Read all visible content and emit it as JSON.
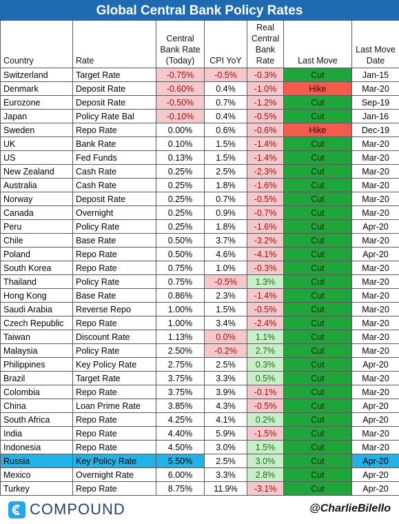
{
  "title": "Global Central Bank Policy Rates",
  "headers": {
    "country": "Country",
    "rate": "Rate",
    "policy_rate": [
      "Central",
      "Bank Rate",
      "(Today)"
    ],
    "cpi": "CPI YoY",
    "real_rate": [
      "Real",
      "Central",
      "Bank",
      "Rate"
    ],
    "last_move": "Last Move",
    "last_move_date": [
      "Last Move",
      "Date"
    ]
  },
  "rows": [
    {
      "country": "Switzerland",
      "rate": "Target Rate",
      "policy": "-0.75%",
      "cpi": "-0.5%",
      "real": "-0.3%",
      "move": "Cut",
      "date": "Jan-15"
    },
    {
      "country": "Denmark",
      "rate": "Deposit Rate",
      "policy": "-0.60%",
      "cpi": "0.4%",
      "real": "-1.0%",
      "move": "Hike",
      "date": "Mar-20"
    },
    {
      "country": "Eurozone",
      "rate": "Deposit Rate",
      "policy": "-0.50%",
      "cpi": "0.7%",
      "real": "-1.2%",
      "move": "Cut",
      "date": "Sep-19"
    },
    {
      "country": "Japan",
      "rate": "Policy Rate Bal",
      "policy": "-0.10%",
      "cpi": "0.4%",
      "real": "-0.5%",
      "move": "Cut",
      "date": "Jan-16"
    },
    {
      "country": "Sweden",
      "rate": "Repo Rate",
      "policy": "0.00%",
      "cpi": "0.6%",
      "real": "-0.6%",
      "move": "Hike",
      "date": "Dec-19"
    },
    {
      "country": "UK",
      "rate": "Bank Rate",
      "policy": "0.10%",
      "cpi": "1.5%",
      "real": "-1.4%",
      "move": "Cut",
      "date": "Mar-20"
    },
    {
      "country": "US",
      "rate": "Fed Funds",
      "policy": "0.13%",
      "cpi": "1.5%",
      "real": "-1.4%",
      "move": "Cut",
      "date": "Mar-20"
    },
    {
      "country": "New Zealand",
      "rate": "Cash Rate",
      "policy": "0.25%",
      "cpi": "2.5%",
      "real": "-2.3%",
      "move": "Cut",
      "date": "Mar-20"
    },
    {
      "country": "Australia",
      "rate": "Cash Rate",
      "policy": "0.25%",
      "cpi": "1.8%",
      "real": "-1.6%",
      "move": "Cut",
      "date": "Mar-20"
    },
    {
      "country": "Norway",
      "rate": "Deposit Rate",
      "policy": "0.25%",
      "cpi": "0.7%",
      "real": "-0.5%",
      "move": "Cut",
      "date": "Mar-20"
    },
    {
      "country": "Canada",
      "rate": "Overnight",
      "policy": "0.25%",
      "cpi": "0.9%",
      "real": "-0.7%",
      "move": "Cut",
      "date": "Mar-20"
    },
    {
      "country": "Peru",
      "rate": "Policy Rate",
      "policy": "0.25%",
      "cpi": "1.8%",
      "real": "-1.6%",
      "move": "Cut",
      "date": "Apr-20"
    },
    {
      "country": "Chile",
      "rate": "Base Rate",
      "policy": "0.50%",
      "cpi": "3.7%",
      "real": "-3.2%",
      "move": "Cut",
      "date": "Mar-20"
    },
    {
      "country": "Poland",
      "rate": "Repo Rate",
      "policy": "0.50%",
      "cpi": "4.6%",
      "real": "-4.1%",
      "move": "Cut",
      "date": "Apr-20"
    },
    {
      "country": "South Korea",
      "rate": "Repo Rate",
      "policy": "0.75%",
      "cpi": "1.0%",
      "real": "-0.3%",
      "move": "Cut",
      "date": "Mar-20"
    },
    {
      "country": "Thailand",
      "rate": "Policy Rate",
      "policy": "0.75%",
      "cpi": "-0.5%",
      "real": "1.3%",
      "move": "Cut",
      "date": "Mar-20"
    },
    {
      "country": "Hong Kong",
      "rate": "Base Rate",
      "policy": "0.86%",
      "cpi": "2.3%",
      "real": "-1.4%",
      "move": "Cut",
      "date": "Mar-20"
    },
    {
      "country": "Saudi Arabia",
      "rate": "Reverse Repo",
      "policy": "1.00%",
      "cpi": "1.5%",
      "real": "-0.5%",
      "move": "Cut",
      "date": "Mar-20"
    },
    {
      "country": "Czech Republic",
      "rate": "Repo Rate",
      "policy": "1.00%",
      "cpi": "3.4%",
      "real": "-2.4%",
      "move": "Cut",
      "date": "Mar-20"
    },
    {
      "country": "Taiwan",
      "rate": "Discount Rate",
      "policy": "1.13%",
      "cpi": "0.0%",
      "real": "1.1%",
      "move": "Cut",
      "date": "Mar-20"
    },
    {
      "country": "Malaysia",
      "rate": "Policy Rate",
      "policy": "2.50%",
      "cpi": "-0.2%",
      "real": "2.7%",
      "move": "Cut",
      "date": "Mar-20"
    },
    {
      "country": "Philippines",
      "rate": "Key Policy Rate",
      "policy": "2.75%",
      "cpi": "2.5%",
      "real": "0.3%",
      "move": "Cut",
      "date": "Apr-20"
    },
    {
      "country": "Brazil",
      "rate": "Target Rate",
      "policy": "3.75%",
      "cpi": "3.3%",
      "real": "0.5%",
      "move": "Cut",
      "date": "Mar-20"
    },
    {
      "country": "Colombia",
      "rate": "Repo Rate",
      "policy": "3.75%",
      "cpi": "3.9%",
      "real": "-0.1%",
      "move": "Cut",
      "date": "Mar-20"
    },
    {
      "country": "China",
      "rate": "Loan Prime Rate",
      "policy": "3.85%",
      "cpi": "4.3%",
      "real": "-0.5%",
      "move": "Cut",
      "date": "Apr-20"
    },
    {
      "country": "South Africa",
      "rate": "Repo Rate",
      "policy": "4.25%",
      "cpi": "4.1%",
      "real": "0.2%",
      "move": "Cut",
      "date": "Apr-20"
    },
    {
      "country": "India",
      "rate": "Repo Rate",
      "policy": "4.40%",
      "cpi": "5.9%",
      "real": "-1.5%",
      "move": "Cut",
      "date": "Mar-20"
    },
    {
      "country": "Indonesia",
      "rate": "Repo Rate",
      "policy": "4.50%",
      "cpi": "3.0%",
      "real": "1.5%",
      "move": "Cut",
      "date": "Mar-20"
    },
    {
      "country": "Russia",
      "rate": "Key Policy Rate",
      "policy": "5.50%",
      "cpi": "2.5%",
      "real": "3.0%",
      "move": "Cut",
      "date": "Apr-20",
      "highlight": true
    },
    {
      "country": "Mexico",
      "rate": "Overnight Rate",
      "policy": "6.00%",
      "cpi": "3.3%",
      "real": "2.8%",
      "move": "Cut",
      "date": "Apr-20"
    },
    {
      "country": "Turkey",
      "rate": "Repo Rate",
      "policy": "8.75%",
      "cpi": "11.9%",
      "real": "-3.1%",
      "move": "Cut",
      "date": "Apr-20"
    }
  ],
  "footer": {
    "logo_text": "COMPOUND",
    "handle": "@CharlieBilello"
  },
  "colors": {
    "title_bg": "#1f6bb1",
    "negative_bg": "#f6c7cb",
    "positive_bg": "#c9eec9",
    "cut_bg": "#1fa63a",
    "hike_bg": "#f35b4d",
    "highlight_bg": "#21b2e8",
    "logo_accent": "#22a7ea"
  }
}
